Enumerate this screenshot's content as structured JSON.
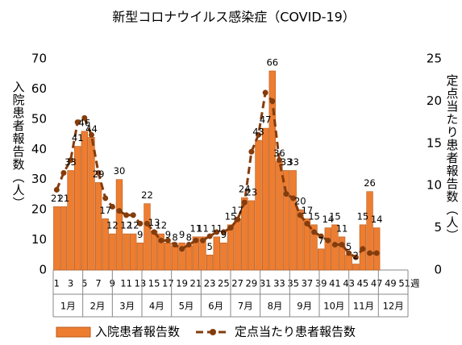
{
  "chart_data": {
    "type": "bar",
    "title": "新型コロナウイルス感染症（COVID-19）",
    "y_label": "入院患者報告数（人）",
    "y2_label": "定点当たり患者報告数（人）",
    "x_unit": "週",
    "categories": [
      "1",
      null,
      "3",
      null,
      "5",
      null,
      "7",
      null,
      "9",
      null,
      "11",
      null,
      "13",
      null,
      "15",
      null,
      "17",
      null,
      "19",
      null,
      "21",
      null,
      "23",
      null,
      "25",
      null,
      "27",
      null,
      "29",
      null,
      "31",
      null,
      "33",
      null,
      "35",
      null,
      "37",
      null,
      "39",
      null,
      "41",
      null,
      "43",
      null,
      "45",
      null,
      "47",
      null,
      "49",
      null,
      "51"
    ],
    "months": [
      "1月",
      "2月",
      "3月",
      "4月",
      "5月",
      "6月",
      "7月",
      "8月",
      "9月",
      "10月",
      "11月",
      "12月"
    ],
    "ylim": [
      0,
      70
    ],
    "yticks": [
      0,
      10,
      20,
      30,
      40,
      50,
      60,
      70
    ],
    "y2lim": [
      0,
      25
    ],
    "y2ticks": [
      0,
      5,
      10,
      15,
      20,
      25
    ],
    "legend": "bottom",
    "series": [
      {
        "name": "入院患者報告数",
        "type": "bar",
        "color": "#ED7D31",
        "values": [
          21,
          21,
          33,
          41,
          46,
          44,
          29,
          17,
          12,
          30,
          12,
          12,
          9,
          22,
          13,
          12,
          9,
          8,
          9,
          8,
          11,
          11,
          5,
          11,
          9,
          15,
          17,
          24,
          23,
          43,
          47,
          66,
          36,
          33,
          33,
          20,
          17,
          15,
          7,
          14,
          15,
          11,
          5,
          2,
          15,
          26,
          14,
          null,
          null,
          null,
          null
        ]
      },
      {
        "name": "定点当たり患者報告数",
        "type": "line",
        "axis": "y2",
        "color": "#843C0C",
        "values": [
          9.5,
          11.5,
          13,
          17.5,
          18,
          16,
          11.5,
          8.5,
          7.5,
          7,
          6.5,
          6.5,
          5.5,
          5.5,
          4.5,
          3.5,
          3.5,
          3,
          2.5,
          3,
          3.5,
          3.5,
          4,
          4.5,
          4.5,
          5,
          6,
          8,
          14,
          16,
          21,
          20,
          13,
          9,
          8.5,
          6.5,
          5.5,
          4.5,
          4,
          3.5,
          3,
          3,
          2,
          1.5,
          2.5,
          2,
          2,
          null,
          null,
          null,
          null
        ]
      }
    ]
  }
}
